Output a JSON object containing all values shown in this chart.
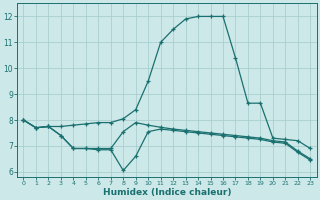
{
  "title": "",
  "xlabel": "Humidex (Indice chaleur)",
  "bg_color": "#cde8e8",
  "grid_color": "#aacece",
  "line_color": "#1a7070",
  "xlim": [
    -0.5,
    23.5
  ],
  "ylim": [
    5.8,
    12.5
  ],
  "yticks": [
    6,
    7,
    8,
    9,
    10,
    11,
    12
  ],
  "xticks": [
    0,
    1,
    2,
    3,
    4,
    5,
    6,
    7,
    8,
    9,
    10,
    11,
    12,
    13,
    14,
    15,
    16,
    17,
    18,
    19,
    20,
    21,
    22,
    23
  ],
  "line1_x": [
    0,
    1,
    2,
    3,
    4,
    5,
    6,
    7,
    8,
    9,
    10,
    11,
    12,
    13,
    14,
    15,
    16,
    17,
    18,
    19,
    20,
    21,
    22,
    23
  ],
  "line1_y": [
    8.0,
    7.7,
    7.75,
    7.75,
    7.8,
    7.85,
    7.9,
    7.9,
    8.05,
    8.4,
    9.5,
    11.0,
    11.5,
    11.9,
    12.0,
    12.0,
    12.0,
    10.4,
    8.65,
    8.65,
    7.3,
    7.25,
    7.2,
    6.9
  ],
  "line2_x": [
    0,
    1,
    2,
    3,
    4,
    5,
    6,
    7,
    8,
    9,
    10,
    11,
    12,
    13,
    14,
    15,
    16,
    17,
    18,
    19,
    20,
    21,
    22,
    23
  ],
  "line2_y": [
    8.0,
    7.7,
    7.75,
    7.4,
    6.9,
    6.9,
    6.9,
    6.9,
    7.55,
    7.9,
    7.8,
    7.72,
    7.65,
    7.6,
    7.55,
    7.5,
    7.45,
    7.4,
    7.35,
    7.3,
    7.2,
    7.15,
    6.8,
    6.5
  ],
  "line3_x": [
    0,
    1,
    2,
    3,
    4,
    5,
    6,
    7,
    8,
    9,
    10,
    11,
    12,
    13,
    14,
    15,
    16,
    17,
    18,
    19,
    20,
    21,
    22,
    23
  ],
  "line3_y": [
    8.0,
    7.7,
    7.75,
    7.4,
    6.9,
    6.9,
    6.85,
    6.85,
    6.05,
    6.6,
    7.55,
    7.65,
    7.6,
    7.55,
    7.5,
    7.45,
    7.4,
    7.35,
    7.3,
    7.25,
    7.15,
    7.1,
    6.75,
    6.45
  ]
}
